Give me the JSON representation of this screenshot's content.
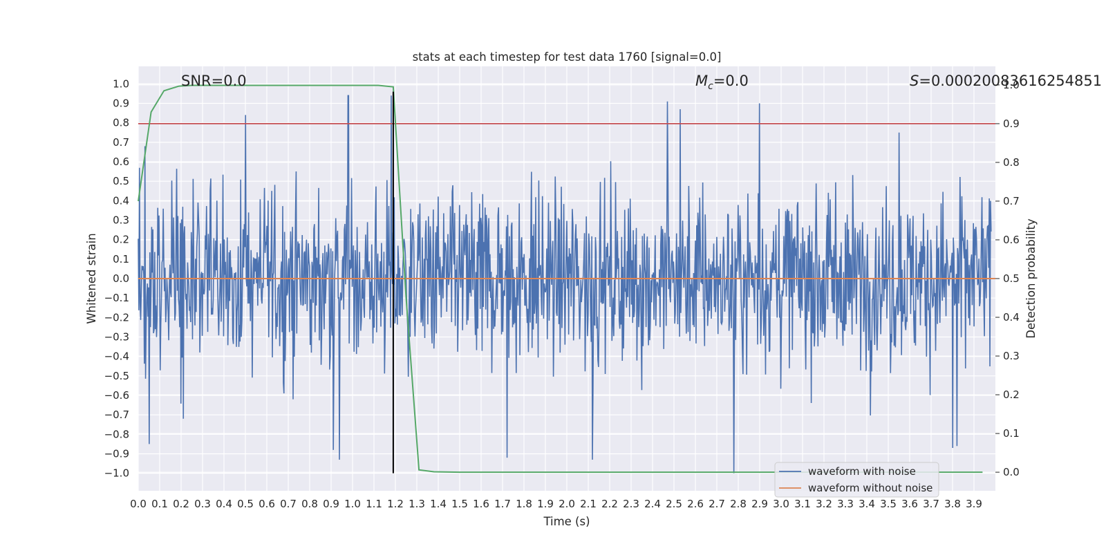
{
  "chart_data": {
    "type": "line",
    "title": "stats at each timestep for test data 1760 [signal=0.0]",
    "xlabel": "Time (s)",
    "ylabel": "Whitened strain",
    "y2label": "Detection probability",
    "xlim": [
      0.0,
      4.0
    ],
    "ylim": [
      -1.09,
      1.09
    ],
    "y2lim": [
      -0.048,
      1.048
    ],
    "xticks": [
      "0.0",
      "0.1",
      "0.2",
      "0.3",
      "0.4",
      "0.5",
      "0.6",
      "0.7",
      "0.8",
      "0.9",
      "1.0",
      "1.1",
      "1.2",
      "1.3",
      "1.4",
      "1.5",
      "1.6",
      "1.7",
      "1.8",
      "1.9",
      "2.0",
      "2.1",
      "2.2",
      "2.3",
      "2.4",
      "2.5",
      "2.6",
      "2.7",
      "2.8",
      "2.9",
      "3.0",
      "3.1",
      "3.2",
      "3.3",
      "3.4",
      "3.5",
      "3.6",
      "3.7",
      "3.8",
      "3.9"
    ],
    "yticks": [
      "1.0",
      "0.9",
      "0.8",
      "0.7",
      "0.6",
      "0.5",
      "0.4",
      "0.3",
      "0.2",
      "0.1",
      "0.0",
      "−0.1",
      "−0.2",
      "−0.3",
      "−0.4",
      "−0.5",
      "−0.6",
      "−0.7",
      "−0.8",
      "−0.9",
      "−1.0"
    ],
    "y2ticks": [
      "1.0",
      "0.9",
      "0.8",
      "0.7",
      "0.6",
      "0.5",
      "0.4",
      "0.3",
      "0.2",
      "0.1",
      "0.0"
    ],
    "annotations": {
      "snr": "SNR=0.0",
      "mc_symbol": "M",
      "mc_sub": "c",
      "mc_value": "=0.0",
      "s_symbol": "S",
      "s_value": "=0.00020083616254851"
    },
    "threshold": 0.9,
    "marker_time": 1.19,
    "series": [
      {
        "name": "waveform with noise",
        "color": "#4c72b0",
        "seed": 1760,
        "samples": 1400,
        "amplitude_sigma": 0.22,
        "peaks": [
          {
            "t": 0.03,
            "v": 0.68
          },
          {
            "t": 0.05,
            "v": -0.85
          },
          {
            "t": 0.21,
            "v": -0.72
          },
          {
            "t": 0.5,
            "v": 0.84
          },
          {
            "t": 0.91,
            "v": -0.88
          },
          {
            "t": 0.94,
            "v": -0.93
          },
          {
            "t": 0.98,
            "v": 0.94
          },
          {
            "t": 1.18,
            "v": 0.94
          },
          {
            "t": 1.72,
            "v": -0.92
          },
          {
            "t": 2.12,
            "v": -0.93
          },
          {
            "t": 2.47,
            "v": 0.91
          },
          {
            "t": 2.53,
            "v": 0.87
          },
          {
            "t": 2.78,
            "v": -1.0
          },
          {
            "t": 2.9,
            "v": 0.9
          },
          {
            "t": 3.55,
            "v": 0.75
          },
          {
            "t": 3.8,
            "v": -0.87
          },
          {
            "t": 3.82,
            "v": -0.86
          }
        ]
      },
      {
        "name": "waveform without noise",
        "color": "#dd8452",
        "x": [
          0.0,
          4.0
        ],
        "y": [
          0.0,
          0.0
        ]
      }
    ],
    "probability": {
      "name": "detection probability",
      "color": "#55a868",
      "x": [
        0.0,
        0.06,
        0.12,
        0.19,
        0.25,
        0.31,
        0.5,
        0.75,
        1.0,
        1.12,
        1.19,
        1.25,
        1.31,
        1.38,
        1.5,
        2.0,
        3.0,
        3.94
      ],
      "y": [
        0.7,
        0.93,
        0.985,
        0.997,
        0.999,
        0.999,
        0.999,
        0.999,
        0.999,
        0.999,
        0.995,
        0.45,
        0.006,
        0.001,
        0.0,
        0.0,
        0.0,
        0.0
      ]
    },
    "legend": {
      "position": "lower-right",
      "items": [
        {
          "label": "waveform with noise",
          "color": "#4c72b0"
        },
        {
          "label": "waveform without noise",
          "color": "#dd8452"
        }
      ]
    },
    "colors": {
      "background": "#eaeaf2",
      "grid": "#ffffff",
      "threshold": "#c44e52",
      "marker": "#000000"
    }
  }
}
